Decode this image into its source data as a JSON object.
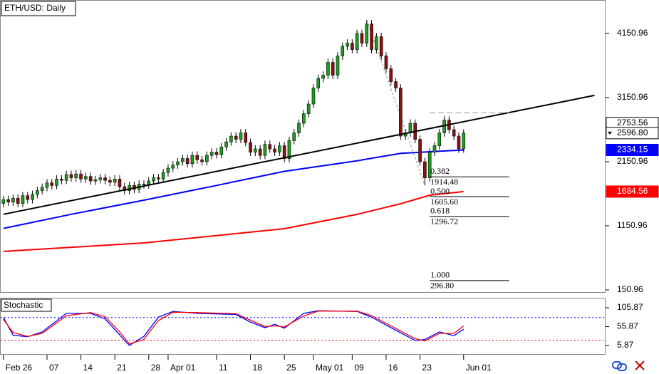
{
  "chart_data": {
    "type": "candlestick",
    "title": "ETH/USD: Daily",
    "categories": [
      "Feb 26",
      null,
      null,
      null,
      null,
      null,
      null,
      null,
      null,
      "07",
      null,
      null,
      null,
      null,
      null,
      null,
      "14",
      null,
      null,
      null,
      null,
      null,
      null,
      "21",
      null,
      null,
      null,
      null,
      null,
      null,
      "28",
      null,
      null,
      null,
      "Apr 01",
      null,
      null,
      null,
      null,
      null,
      null,
      null,
      null,
      null,
      "11",
      null,
      null,
      null,
      null,
      null,
      null,
      "18",
      null,
      null,
      null,
      null,
      null,
      null,
      "25",
      null,
      null,
      null,
      null,
      null,
      "May 01",
      null,
      null,
      null,
      null,
      null,
      null,
      null,
      "09",
      null,
      null,
      null,
      null,
      null,
      null,
      "16",
      null,
      null,
      null,
      null,
      null,
      null,
      "23",
      null,
      null,
      null,
      null,
      null,
      null,
      null,
      null,
      "Jun 01"
    ],
    "open": [
      1500,
      1560,
      1520,
      1580,
      1500,
      1620,
      1560,
      1640,
      1700,
      1750,
      1820,
      1780,
      1880,
      1860,
      1950,
      1900,
      1960,
      1880,
      1920,
      1850,
      1870,
      1900,
      1860,
      1830,
      1880,
      1760,
      1700,
      1780,
      1720,
      1800,
      1790,
      1850,
      1900,
      1880,
      1980,
      2050,
      2100,
      2150,
      2200,
      2120,
      2250,
      2180,
      2150,
      2250,
      2300,
      2260,
      2380,
      2460,
      2550,
      2500,
      2600,
      2450,
      2300,
      2350,
      2250,
      2420,
      2350,
      2300,
      2400,
      2200,
      2480,
      2600,
      2750,
      2900,
      3050,
      3300,
      3450,
      3500,
      3700,
      3500,
      3800,
      3950,
      4000,
      3900,
      4150,
      4000,
      4300,
      3900,
      4100,
      3800,
      3600,
      3400,
      3300,
      2550,
      2600,
      2750,
      2500,
      2150,
      1900,
      2300,
      2400,
      2600,
      2800,
      2650,
      2550,
      2350
    ],
    "high": [
      1620,
      1620,
      1640,
      1640,
      1680,
      1680,
      1700,
      1760,
      1810,
      1880,
      1880,
      1940,
      1940,
      2010,
      2010,
      2020,
      2020,
      1980,
      1980,
      1930,
      1960,
      1960,
      1920,
      1940,
      1940,
      1820,
      1840,
      1840,
      1860,
      1860,
      1910,
      1960,
      1960,
      2040,
      2110,
      2160,
      2210,
      2260,
      2260,
      2310,
      2310,
      2240,
      2310,
      2360,
      2360,
      2440,
      2520,
      2610,
      2610,
      2660,
      2660,
      2510,
      2410,
      2410,
      2480,
      2480,
      2410,
      2460,
      2460,
      2540,
      2660,
      2810,
      2960,
      3110,
      3360,
      3510,
      3560,
      3760,
      3760,
      3860,
      4010,
      4060,
      4060,
      4210,
      4210,
      4360,
      4360,
      4160,
      4160,
      3860,
      3660,
      3460,
      3360,
      2660,
      2810,
      2810,
      2560,
      2210,
      2360,
      2460,
      2660,
      2860,
      2860,
      2710,
      2610,
      2656.8
    ],
    "low": [
      1440,
      1460,
      1460,
      1440,
      1440,
      1500,
      1500,
      1580,
      1640,
      1690,
      1720,
      1720,
      1800,
      1800,
      1840,
      1840,
      1820,
      1820,
      1790,
      1790,
      1810,
      1800,
      1770,
      1770,
      1700,
      1640,
      1640,
      1660,
      1660,
      1730,
      1730,
      1790,
      1820,
      1820,
      1920,
      1990,
      2040,
      2090,
      2060,
      2060,
      2120,
      2090,
      2090,
      2190,
      2200,
      2200,
      2320,
      2400,
      2440,
      2440,
      2390,
      2240,
      2240,
      2190,
      2190,
      2290,
      2240,
      2240,
      2140,
      2140,
      2420,
      2540,
      2690,
      2840,
      2990,
      3240,
      3390,
      3440,
      3440,
      3440,
      3740,
      3890,
      3840,
      3840,
      3940,
      3940,
      3840,
      3840,
      3740,
      3540,
      3340,
      3240,
      2490,
      2490,
      2540,
      2440,
      2090,
      1780,
      1840,
      2240,
      2340,
      2540,
      2590,
      2490,
      2290,
      2290
    ],
    "close": [
      1560,
      1520,
      1580,
      1500,
      1620,
      1560,
      1640,
      1700,
      1750,
      1820,
      1780,
      1880,
      1860,
      1950,
      1900,
      1960,
      1880,
      1920,
      1850,
      1870,
      1900,
      1860,
      1830,
      1880,
      1760,
      1700,
      1780,
      1720,
      1800,
      1790,
      1850,
      1900,
      1880,
      1980,
      2050,
      2100,
      2150,
      2200,
      2120,
      2250,
      2180,
      2150,
      2250,
      2300,
      2260,
      2380,
      2460,
      2550,
      2500,
      2600,
      2450,
      2300,
      2350,
      2250,
      2420,
      2350,
      2300,
      2400,
      2200,
      2480,
      2600,
      2750,
      2900,
      3050,
      3300,
      3450,
      3500,
      3700,
      3500,
      3800,
      3950,
      4000,
      3900,
      4150,
      4000,
      4300,
      3900,
      4100,
      3800,
      3600,
      3400,
      3300,
      2550,
      2600,
      2750,
      2500,
      2150,
      1900,
      2300,
      2400,
      2600,
      2800,
      2650,
      2550,
      2350,
      2596.8
    ],
    "up_color": "#1f9e1f",
    "down_color": "#8b1010",
    "xlim": [
      -0.7,
      124.3
    ],
    "ylim": [
      117.2,
      4672.8
    ],
    "yticks": [
      150.96,
      1150.96,
      2150.96,
      3150.96,
      4150.96
    ],
    "last_price": {
      "value": 2596.8,
      "label": "2596.80"
    },
    "series": [
      {
        "color": "#0000ff",
        "x": [
          0,
          14,
          29,
          44,
          58,
          73,
          82,
          95
        ],
        "values": [
          1110,
          1330,
          1550,
          1780,
          2000,
          2165,
          2280,
          2334.15
        ]
      },
      {
        "color": "#ff0000",
        "x": [
          0,
          29,
          58,
          73,
          82,
          88,
          95
        ],
        "values": [
          752,
          884,
          1106,
          1329,
          1495,
          1628,
          1684.56
        ]
      }
    ],
    "trendline": {
      "color": "#000000",
      "x": [
        0,
        122
      ],
      "values": [
        1330,
        3185
      ],
      "level": 2753.56
    },
    "fib": {
      "x": [
        88,
        104.4
      ],
      "top": 2914.4,
      "levels": [
        {
          "ratio": 0.382,
          "price": 1914.48
        },
        {
          "ratio": {
            "value": 0.5,
            "label": "0.500"
          },
          "price": {
            "value": 1605.6,
            "label": "1605.60"
          }
        },
        {
          "ratio": 0.618,
          "price": 1296.72
        },
        {
          "ratio": {
            "value": 1,
            "label": "1.000"
          },
          "price": {
            "value": 296.8,
            "label": "296.80"
          }
        }
      ]
    },
    "stochastic": {
      "title": "Stochastic",
      "ylim": [
        -16.77,
        132.3
      ],
      "yticks": [
        105.87,
        55.87,
        5.87
      ],
      "levels": [
        {
          "value": 80,
          "color": "#0000ff"
        },
        {
          "value": 20,
          "color": "#ff0000"
        }
      ],
      "series": [
        {
          "color": "#0000ff",
          "x": [
            0,
            2,
            5,
            8,
            13,
            18,
            21,
            24,
            26,
            29,
            32,
            35,
            40,
            48,
            51,
            54,
            56,
            58,
            62,
            65,
            73,
            76,
            80,
            85,
            87,
            90,
            93,
            95
          ],
          "values": [
            80,
            33,
            29,
            42,
            91,
            91,
            76,
            34,
            6,
            30,
            81,
            96,
            91,
            88,
            68,
            53,
            62,
            52,
            91,
            98,
            96,
            81,
            53,
            19,
            22,
            42,
            32,
            49
          ]
        },
        {
          "color": "#ff0000",
          "x": [
            0,
            2,
            5,
            8,
            13,
            18,
            21,
            24,
            26,
            29,
            32,
            35,
            40,
            48,
            51,
            54,
            56,
            58,
            62,
            65,
            73,
            76,
            80,
            85,
            87,
            90,
            93,
            95
          ],
          "values": [
            75,
            40,
            30,
            38,
            85,
            93,
            82,
            42,
            10,
            22,
            72,
            94,
            93,
            90,
            73,
            56,
            58,
            55,
            84,
            97,
            97,
            85,
            58,
            24,
            18,
            38,
            38,
            58
          ]
        }
      ]
    }
  }
}
